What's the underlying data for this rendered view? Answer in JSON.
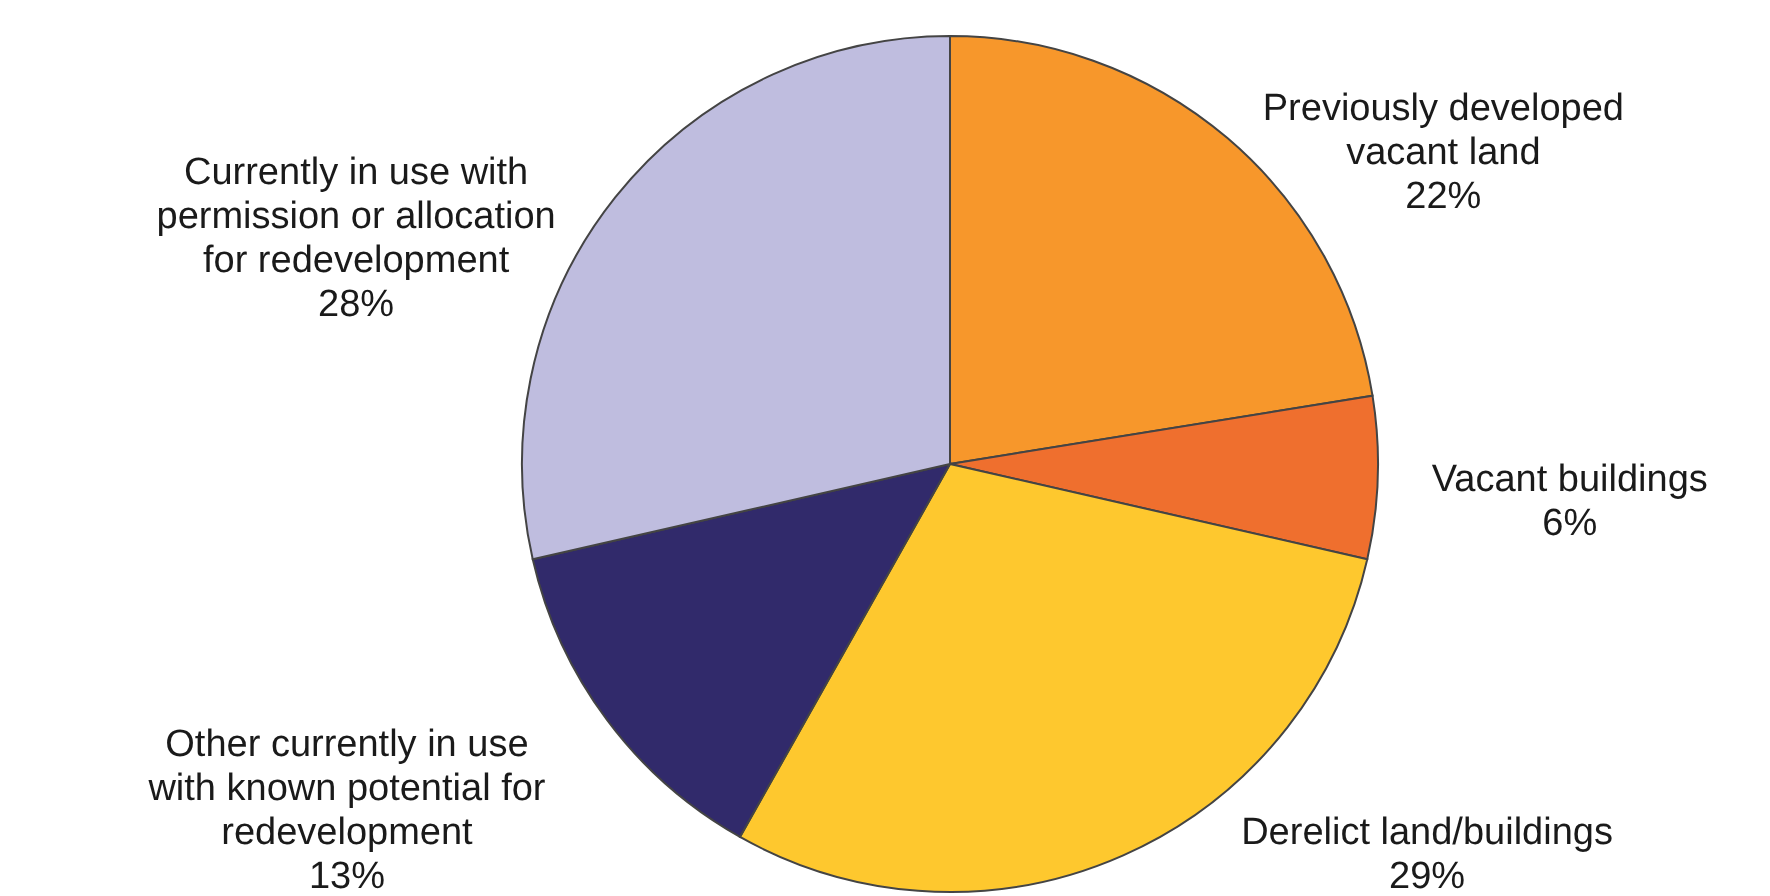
{
  "chart_data": {
    "type": "pie",
    "categories": [
      "Previously developed vacant land",
      "Vacant buildings",
      "Derelict land/buildings",
      "Other currently in use with known potential for redevelopment",
      "Currently in use with permission or allocation for redevelopment"
    ],
    "values": [
      22,
      6,
      29,
      13,
      28
    ],
    "value_labels": [
      "22%",
      "6%",
      "29%",
      "13%",
      "28%"
    ],
    "colors": [
      "#f7972b",
      "#ef6f2e",
      "#fec82e",
      "#312a6b",
      "#bfbddf"
    ]
  }
}
